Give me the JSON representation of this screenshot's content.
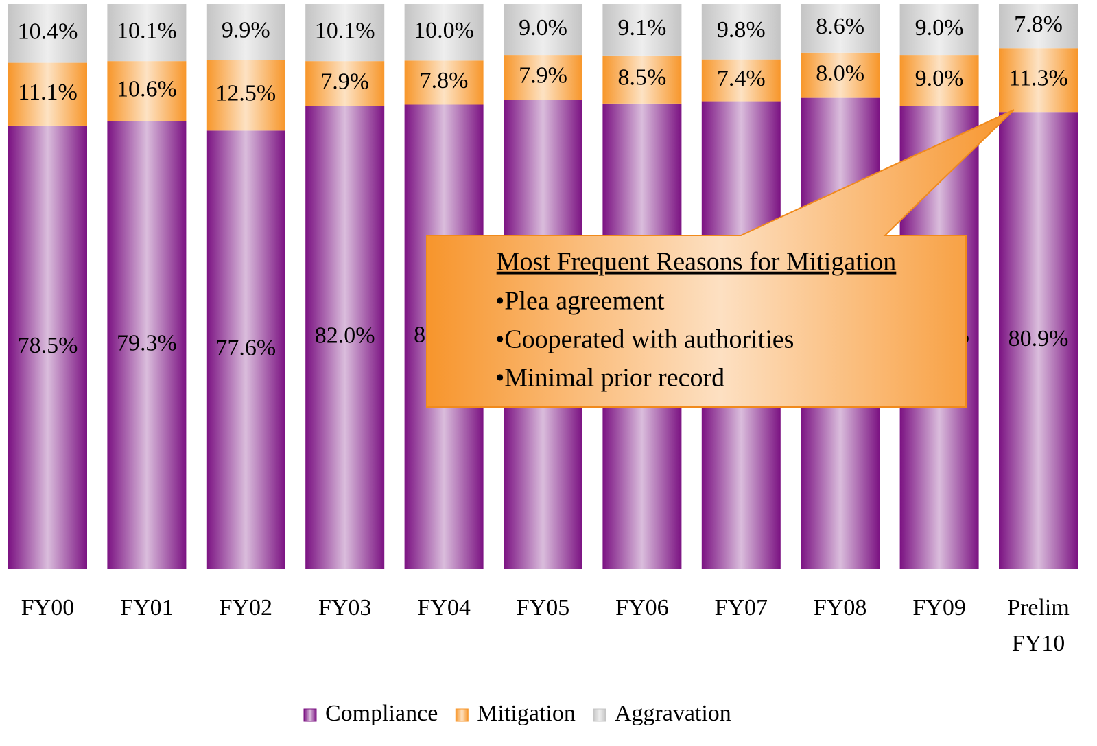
{
  "chart_data": {
    "type": "stacked_bar",
    "categories": [
      "FY00",
      "FY01",
      "FY02",
      "FY03",
      "FY04",
      "FY05",
      "FY06",
      "FY07",
      "FY08",
      "FY09",
      "Prelim FY10"
    ],
    "series": [
      {
        "name": "Compliance",
        "color": "#7b1282",
        "values": [
          78.5,
          79.3,
          77.6,
          82.0,
          82.2,
          83.1,
          82.4,
          82.8,
          83.4,
          82.0,
          80.9
        ],
        "value_labels": [
          "78.5%",
          "79.3%",
          "77.6%",
          "82.0%",
          "82.2%",
          "83.1%",
          "82.4%",
          "82.8%",
          "83.4%",
          "82.0%",
          "80.9%"
        ]
      },
      {
        "name": "Mitigation",
        "color": "#f7962a",
        "values": [
          11.1,
          10.6,
          12.5,
          7.9,
          7.8,
          7.9,
          8.5,
          7.4,
          8.0,
          9.0,
          11.3
        ],
        "value_labels": [
          "11.1%",
          "10.6%",
          "12.5%",
          "7.9%",
          "7.8%",
          "7.9%",
          "8.5%",
          "7.4%",
          "8.0%",
          "9.0%",
          "11.3%"
        ]
      },
      {
        "name": "Aggravation",
        "color": "#c4c4c4",
        "values": [
          10.4,
          10.1,
          9.9,
          10.1,
          10.0,
          9.0,
          9.1,
          9.8,
          8.6,
          9.0,
          7.8
        ],
        "value_labels": [
          "10.4%",
          "10.1%",
          "9.9%",
          "10.1%",
          "10.0%",
          "9.0%",
          "9.1%",
          "9.8%",
          "8.6%",
          "9.0%",
          "7.8%"
        ]
      }
    ],
    "ylim": [
      0,
      100
    ],
    "legend": "bottom",
    "annotation": {
      "title": "Most Frequent Reasons for Mitigation",
      "items": [
        "•Plea agreement",
        "•Cooperated with authorities",
        "•Minimal prior record"
      ]
    }
  }
}
